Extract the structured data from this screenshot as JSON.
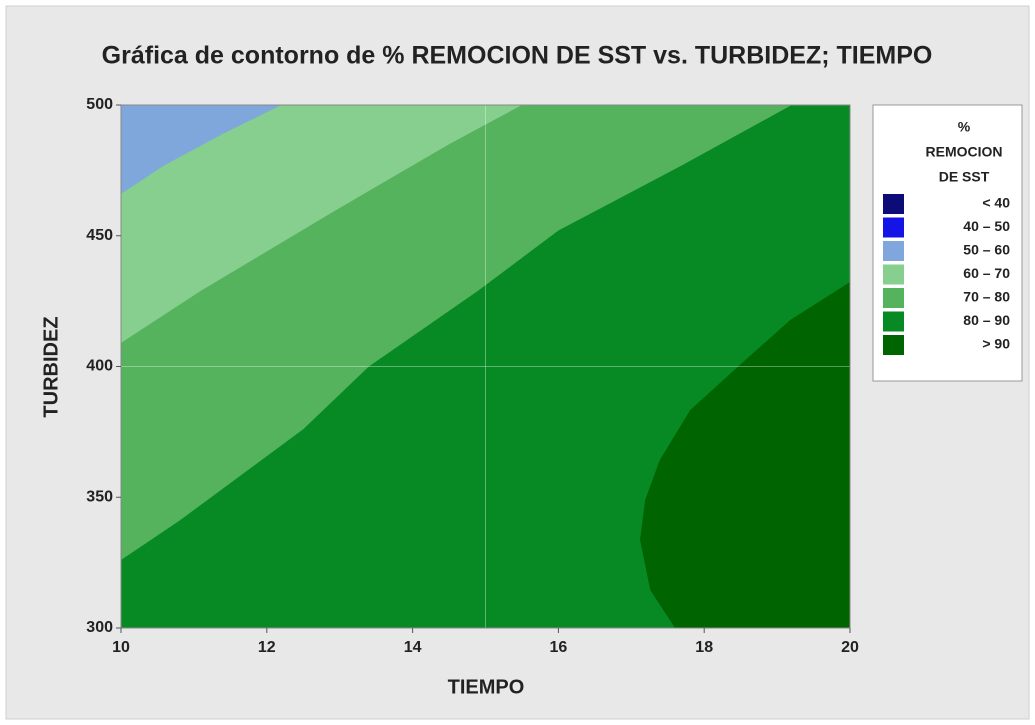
{
  "chart_data": {
    "type": "contour",
    "title": "Gráfica de contorno de % REMOCION DE SST vs. TURBIDEZ; TIEMPO",
    "x_label": "TIEMPO",
    "y_label": "TURBIDEZ",
    "xlim": [
      10,
      20
    ],
    "ylim": [
      300,
      500
    ],
    "xticks": [
      10,
      12,
      14,
      16,
      18,
      20
    ],
    "yticks": [
      300,
      350,
      400,
      450,
      500
    ],
    "gridlines": {
      "x": [
        15
      ],
      "y": [
        400
      ]
    },
    "color": "#7fa7dc",
    "contours": [
      {
        "level": 60,
        "color": "#86cf8f",
        "x": [
          10,
          10.6,
          11.4,
          12.2
        ],
        "y": [
          466,
          477,
          489,
          500
        ]
      },
      {
        "level": 70,
        "color": "#55b25d",
        "x": [
          10,
          11.1,
          12.9,
          14.5,
          15.5
        ],
        "y": [
          409,
          429,
          459,
          485,
          500
        ]
      },
      {
        "level": 80,
        "color": "#078a24",
        "x": [
          10,
          10.8,
          12.5,
          13.4,
          14.9,
          16.0,
          17.7,
          19.2
        ],
        "y": [
          326,
          341,
          376,
          400,
          429,
          452,
          477,
          500
        ]
      },
      {
        "level": 90,
        "color": "#006400",
        "x": [
          17.6,
          17.26,
          17.12,
          17.19,
          17.39,
          17.81,
          18.49,
          19.18,
          20
        ],
        "y": [
          300,
          314.5,
          333.7,
          349,
          364.2,
          383.4,
          400.6,
          417.8,
          432.3
        ]
      }
    ],
    "legend": {
      "title": [
        "%",
        "REMOCION",
        "DE SST"
      ],
      "items": [
        {
          "label": "< 40",
          "color": "#0c0c78"
        },
        {
          "label": "40 – 50",
          "color": "#1414e6"
        },
        {
          "label": "50 – 60",
          "color": "#7fa7dc"
        },
        {
          "label": "60 – 70",
          "color": "#86cf8f"
        },
        {
          "label": "70 – 80",
          "color": "#55b25d"
        },
        {
          "label": "80 – 90",
          "color": "#078a24"
        },
        {
          "label": "> 90",
          "color": "#006400"
        }
      ]
    }
  }
}
